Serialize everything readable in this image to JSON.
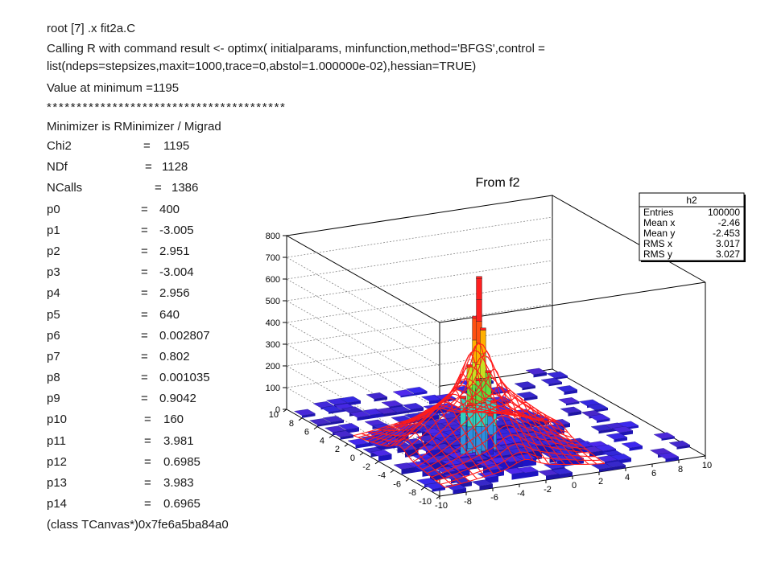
{
  "console": {
    "command_line": "root [7] .x fit2a.C",
    "r_call": "Calling R with command result <- optimx( initialparams, minfunction,method='BFGS',control = list(ndeps=stepsizes,maxit=1000,trace=0,abstol=1.000000e-02),hessian=TRUE)",
    "value_at_min": "Value at minimum =1195",
    "separator": "****************************************",
    "minimizer": "Minimizer is RMinimizer / Migrad",
    "params": [
      {
        "name": "Chi2",
        "value": "1195"
      },
      {
        "name": "NDf",
        "value": "1128"
      },
      {
        "name": "NCalls",
        "value": "1386"
      },
      {
        "name": "p0",
        "value": "400"
      },
      {
        "name": "p1",
        "value": "-3.005"
      },
      {
        "name": "p2",
        "value": "2.951"
      },
      {
        "name": "p3",
        "value": "-3.004"
      },
      {
        "name": "p4",
        "value": "2.956"
      },
      {
        "name": "p5",
        "value": "640"
      },
      {
        "name": "p6",
        "value": "0.002807"
      },
      {
        "name": "p7",
        "value": "0.802"
      },
      {
        "name": "p8",
        "value": "0.001035"
      },
      {
        "name": "p9",
        "value": "0.9042"
      },
      {
        "name": "p10",
        "value": "160"
      },
      {
        "name": "p11",
        "value": "3.981"
      },
      {
        "name": "p12",
        "value": "0.6985"
      },
      {
        "name": "p13",
        "value": "3.983"
      },
      {
        "name": "p14",
        "value": "0.6965"
      }
    ],
    "equals": "=",
    "return_line": "(class TCanvas*)0x7fe6a5ba84a0"
  },
  "plot": {
    "title": "From f2",
    "stats": {
      "name": "h2",
      "rows": [
        {
          "label": "Entries",
          "value": "100000"
        },
        {
          "label": "Mean x",
          "value": "-2.46"
        },
        {
          "label": "Mean y",
          "value": "-2.453"
        },
        {
          "label": "RMS x",
          "value": "3.017"
        },
        {
          "label": "RMS y",
          "value": "3.027"
        }
      ]
    },
    "colors": {
      "fit_surface": "#ff1a1a",
      "histogram_low": "#2a1ad8",
      "histogram_high": "#ff2020"
    }
  },
  "chart_data": {
    "type": "lego3d",
    "title": "From f2",
    "z_ticks": [
      "0",
      "100",
      "200",
      "300",
      "400",
      "500",
      "600",
      "700",
      "800"
    ],
    "zlim": [
      0,
      800
    ],
    "x_ticks": [
      "-10",
      "-8",
      "-6",
      "-4",
      "-2",
      "0",
      "2",
      "4",
      "6",
      "8",
      "10"
    ],
    "y_ticks": [
      "-10",
      "-8",
      "-6",
      "-4",
      "-2",
      "0",
      "2",
      "4",
      "6",
      "8",
      "10"
    ],
    "xlim": [
      -10,
      10
    ],
    "ylim": [
      -10,
      10
    ],
    "peak": {
      "x": -3.0,
      "y": -3.0,
      "z": 800
    },
    "grid": true
  }
}
